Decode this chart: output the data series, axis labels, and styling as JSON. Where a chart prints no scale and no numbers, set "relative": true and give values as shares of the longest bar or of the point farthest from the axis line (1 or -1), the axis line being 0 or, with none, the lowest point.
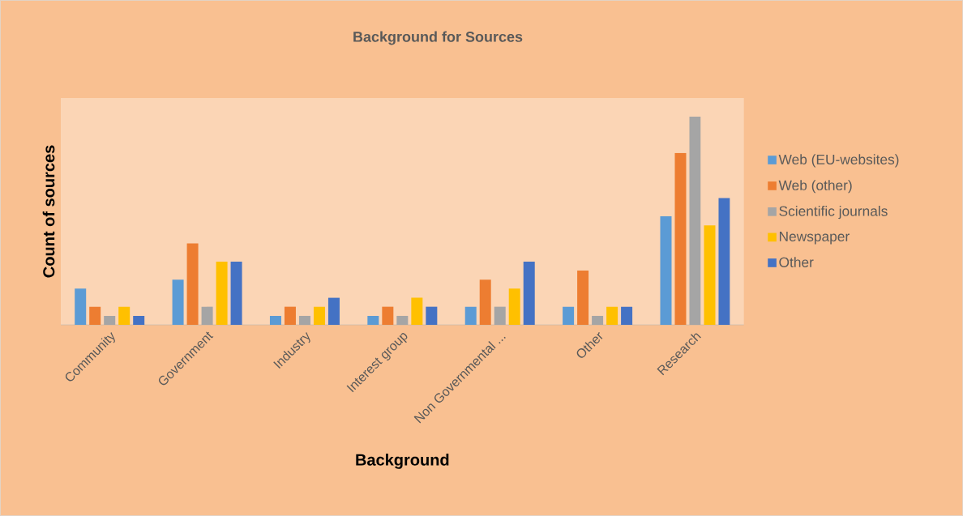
{
  "chart_data": {
    "type": "bar",
    "title": "Background  for Sources",
    "xlabel": "Background",
    "ylabel": "Count of sources",
    "categories": [
      "Community",
      "Government",
      "Industry",
      "Interest group",
      "Non Governmental ...",
      "Other",
      "Research"
    ],
    "relative": true,
    "legend": "right",
    "series": [
      {
        "name": "Web (EU-websites)",
        "color": "#5b9bd5",
        "values": [
          0.174,
          0.217,
          0.043,
          0.043,
          0.087,
          0.087,
          0.522
        ]
      },
      {
        "name": "Web (other)",
        "color": "#ed7d31",
        "values": [
          0.087,
          0.391,
          0.087,
          0.087,
          0.217,
          0.261,
          0.826
        ]
      },
      {
        "name": "Scientific journals",
        "color": "#a5a5a5",
        "values": [
          0.043,
          0.087,
          0.043,
          0.043,
          0.087,
          0.043,
          1
        ]
      },
      {
        "name": "Newspaper",
        "color": "#ffc000",
        "values": [
          0.087,
          0.304,
          0.087,
          0.13,
          0.174,
          0.087,
          0.478
        ]
      },
      {
        "name": "Other",
        "color": "#4472c4",
        "values": [
          0.043,
          0.304,
          0.13,
          0.087,
          0.304,
          0.087,
          0.609
        ]
      }
    ]
  }
}
